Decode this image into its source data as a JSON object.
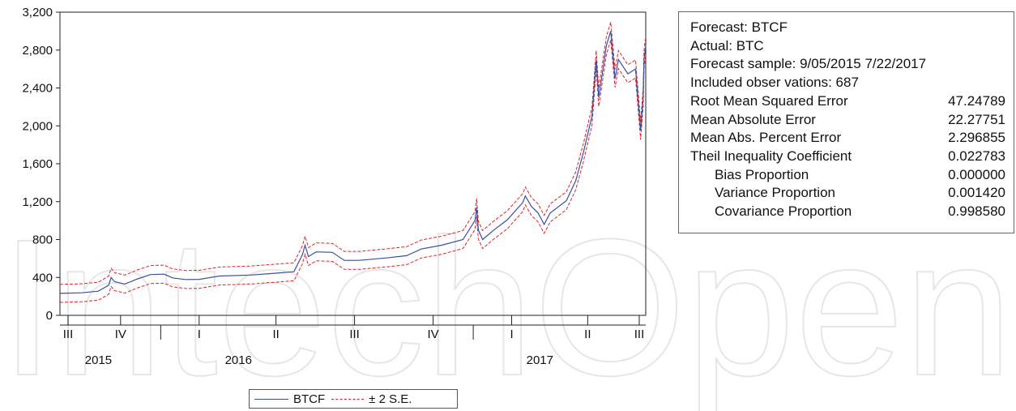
{
  "colors": {
    "forecast": "#3b4fa0",
    "band": "#e0202a",
    "axis": "#222222",
    "watermark": "#e9e9e9"
  },
  "chart_data": {
    "type": "line",
    "title": "",
    "xlabel": "",
    "ylabel": "",
    "ylim": [
      0,
      3200
    ],
    "y_ticks": [
      "0",
      "400",
      "800",
      "1,200",
      "1,600",
      "2,000",
      "2,400",
      "2,800",
      "3,200"
    ],
    "x_range": [
      "2015-09-05",
      "2017-07-22"
    ],
    "quarter_ticks": [
      {
        "label": "III",
        "date": "2015-09-05"
      },
      {
        "label": "IV",
        "date": "2015-11-15"
      },
      {
        "label": "I",
        "date": "2016-02-15"
      },
      {
        "label": "II",
        "date": "2016-05-15"
      },
      {
        "label": "III",
        "date": "2016-08-15"
      },
      {
        "label": "IV",
        "date": "2016-11-15"
      },
      {
        "label": "I",
        "date": "2017-02-15"
      },
      {
        "label": "II",
        "date": "2017-05-15"
      },
      {
        "label": "III",
        "date": "2017-07-20"
      }
    ],
    "year_labels": [
      {
        "label": "2015",
        "date": "2015-10-20"
      },
      {
        "label": "2016",
        "date": "2016-04-01"
      },
      {
        "label": "2017",
        "date": "2017-03-20"
      }
    ],
    "legend": {
      "position": "bottom-center",
      "entries": [
        "BTCF",
        "± 2 S.E."
      ]
    },
    "band_halfwidth": 95,
    "series": [
      {
        "name": "BTCF",
        "style": "solid",
        "points": [
          [
            "2015-09-05",
            232
          ],
          [
            "2015-09-30",
            238
          ],
          [
            "2015-10-20",
            255
          ],
          [
            "2015-11-01",
            318
          ],
          [
            "2015-11-04",
            400
          ],
          [
            "2015-11-08",
            355
          ],
          [
            "2015-11-20",
            330
          ],
          [
            "2015-12-05",
            385
          ],
          [
            "2015-12-20",
            430
          ],
          [
            "2016-01-05",
            435
          ],
          [
            "2016-01-15",
            395
          ],
          [
            "2016-01-30",
            378
          ],
          [
            "2016-02-15",
            380
          ],
          [
            "2016-03-10",
            415
          ],
          [
            "2016-04-15",
            425
          ],
          [
            "2016-05-15",
            445
          ],
          [
            "2016-06-05",
            460
          ],
          [
            "2016-06-15",
            640
          ],
          [
            "2016-06-18",
            740
          ],
          [
            "2016-06-22",
            620
          ],
          [
            "2016-07-01",
            670
          ],
          [
            "2016-07-20",
            665
          ],
          [
            "2016-08-03",
            580
          ],
          [
            "2016-08-20",
            580
          ],
          [
            "2016-09-20",
            605
          ],
          [
            "2016-10-15",
            630
          ],
          [
            "2016-11-01",
            700
          ],
          [
            "2016-11-25",
            740
          ],
          [
            "2016-12-20",
            800
          ],
          [
            "2017-01-03",
            1000
          ],
          [
            "2017-01-05",
            1140
          ],
          [
            "2017-01-07",
            900
          ],
          [
            "2017-01-12",
            800
          ],
          [
            "2017-01-25",
            900
          ],
          [
            "2017-02-10",
            1010
          ],
          [
            "2017-02-28",
            1190
          ],
          [
            "2017-03-03",
            1260
          ],
          [
            "2017-03-10",
            1150
          ],
          [
            "2017-03-18",
            1080
          ],
          [
            "2017-03-25",
            960
          ],
          [
            "2017-04-01",
            1080
          ],
          [
            "2017-04-20",
            1210
          ],
          [
            "2017-05-01",
            1420
          ],
          [
            "2017-05-10",
            1720
          ],
          [
            "2017-05-20",
            2100
          ],
          [
            "2017-05-25",
            2700
          ],
          [
            "2017-05-28",
            2300
          ],
          [
            "2017-06-06",
            2850
          ],
          [
            "2017-06-11",
            3000
          ],
          [
            "2017-06-16",
            2500
          ],
          [
            "2017-06-20",
            2700
          ],
          [
            "2017-07-01",
            2550
          ],
          [
            "2017-07-10",
            2600
          ],
          [
            "2017-07-16",
            1950
          ],
          [
            "2017-07-19",
            2300
          ],
          [
            "2017-07-20",
            2700
          ],
          [
            "2017-07-22",
            2850
          ]
        ]
      },
      {
        "name": "± 2 S.E.",
        "style": "dashed",
        "upper_offset": 95,
        "lower_offset": -95
      }
    ]
  },
  "stats": {
    "lines": [
      "Forecast: BTCF",
      "Actual: BTC",
      "Forecast sample: 9/05/2015 7/22/2017",
      "Included obser vations: 687"
    ],
    "rows": [
      {
        "label": "Root Mean Squared Error",
        "value": "47.24789",
        "indent": false
      },
      {
        "label": "Mean Absolute Error",
        "value": "22.27751",
        "indent": false
      },
      {
        "label": "Mean Abs. Percent Error",
        "value": "2.296855",
        "indent": false
      },
      {
        "label": "Theil Inequality Coefficient",
        "value": "0.022783",
        "indent": false
      },
      {
        "label": "Bias Proportion",
        "value": "0.000000",
        "indent": true
      },
      {
        "label": "Variance Proportion",
        "value": "0.001420",
        "indent": true
      },
      {
        "label": "Covariance Proportion",
        "value": "0.998580",
        "indent": true
      }
    ]
  }
}
